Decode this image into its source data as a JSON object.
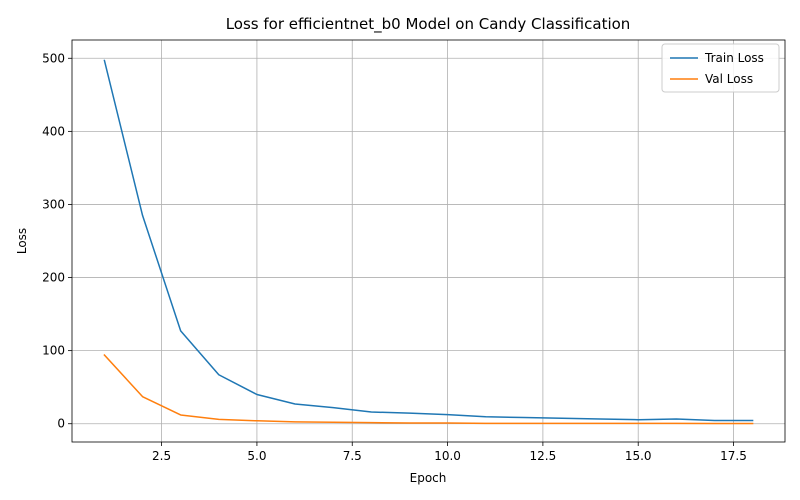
{
  "chart_data": {
    "type": "line",
    "title": "Loss for efficientnet_b0 Model on Candy Classification",
    "xlabel": "Epoch",
    "ylabel": "Loss",
    "xlim": [
      0.15,
      18.85
    ],
    "ylim": [
      -25,
      525
    ],
    "xticks": [
      2.5,
      5.0,
      7.5,
      10.0,
      12.5,
      15.0,
      17.5
    ],
    "xtick_labels": [
      "2.5",
      "5.0",
      "7.5",
      "10.0",
      "12.5",
      "15.0",
      "17.5"
    ],
    "yticks": [
      0,
      100,
      200,
      300,
      400,
      500
    ],
    "ytick_labels": [
      "0",
      "100",
      "200",
      "300",
      "400",
      "500"
    ],
    "grid": true,
    "legend_position": "top-right",
    "x": [
      1,
      2,
      3,
      4,
      5,
      6,
      7,
      8,
      9,
      10,
      11,
      12,
      13,
      14,
      15,
      16,
      17,
      18
    ],
    "series": [
      {
        "name": "Train Loss",
        "color": "#1f77b4",
        "values": [
          497,
          285,
          127,
          67,
          40,
          27,
          22,
          16,
          14.5,
          12.5,
          9.5,
          8.5,
          7.5,
          6.5,
          5.5,
          6.5,
          4.5,
          4.5
        ]
      },
      {
        "name": "Val Loss",
        "color": "#ff7f0e",
        "values": [
          94,
          37,
          12,
          6,
          4,
          2.5,
          2,
          1.5,
          1,
          1,
          0.5,
          0.5,
          0.5,
          0.5,
          0.5,
          0.5,
          0.3,
          0.3
        ]
      }
    ]
  }
}
